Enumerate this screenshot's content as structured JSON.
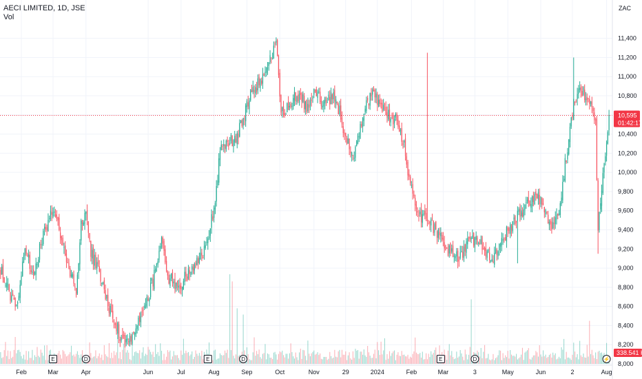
{
  "header": {
    "symbol_line": "AECI LIMITED, 1D, JSE",
    "volume_label": "Vol"
  },
  "currency": "ZAC",
  "last_price": {
    "value": "10,595",
    "countdown": "01:42:17",
    "color": "#f23645"
  },
  "volume_badge": {
    "value": "338.541 K",
    "color": "#f23645"
  },
  "colors": {
    "up": "#22ab94",
    "down": "#f7525f",
    "grid": "#f0f3fa",
    "price_line": "#f23645"
  },
  "event_markers": [
    {
      "type": "earnings",
      "label": "E",
      "index": 43
    },
    {
      "type": "dividend",
      "label": "D",
      "index": 70
    },
    {
      "type": "earnings",
      "label": "E",
      "index": 170
    },
    {
      "type": "dividend",
      "label": "D",
      "index": 199
    },
    {
      "type": "earnings",
      "label": "E",
      "index": 361
    },
    {
      "type": "dividend",
      "label": "D",
      "index": 389
    },
    {
      "type": "lightning",
      "label": "⚡",
      "index": 497
    }
  ],
  "chart_data": {
    "type": "candlestick",
    "title": "AECI LIMITED, 1D, JSE",
    "unit": "ZAC",
    "ylim": [
      8000,
      11700
    ],
    "y_ticks": [
      8000,
      8200,
      8400,
      8600,
      8800,
      9000,
      9200,
      9400,
      9600,
      9800,
      10000,
      10200,
      10400,
      10600,
      10800,
      11000,
      11200,
      11400
    ],
    "y_tick_labels": [
      "8,000",
      "8,200",
      "8,400",
      "8,600",
      "8,800",
      "9,000",
      "9,200",
      "9,400",
      "9,600",
      "9,800",
      "10,000",
      "10,200",
      "10,400",
      "10,600",
      "10,800",
      "11,000",
      "11,200",
      "11,400"
    ],
    "x_labels": [
      {
        "label": "Feb",
        "index": 17
      },
      {
        "label": "Mar",
        "index": 43
      },
      {
        "label": "Apr",
        "index": 70
      },
      {
        "label": "Jun",
        "index": 121
      },
      {
        "label": "Jul",
        "index": 148
      },
      {
        "label": "Aug",
        "index": 175
      },
      {
        "label": "Sep",
        "index": 202
      },
      {
        "label": "Oct",
        "index": 229
      },
      {
        "label": "Nov",
        "index": 257
      },
      {
        "label": "29",
        "index": 283
      },
      {
        "label": "2024",
        "index": 309
      },
      {
        "label": "Feb",
        "index": 337
      },
      {
        "label": "Mar",
        "index": 363
      },
      {
        "label": "3",
        "index": 389
      },
      {
        "label": "May",
        "index": 416
      },
      {
        "label": "Jun",
        "index": 443
      },
      {
        "label": "2",
        "index": 469
      },
      {
        "label": "Aug",
        "index": 497
      }
    ],
    "num_bars": 500,
    "last_close": 10595,
    "close_keyframes": [
      [
        0,
        9000
      ],
      [
        8,
        8700
      ],
      [
        14,
        8650
      ],
      [
        20,
        9250
      ],
      [
        26,
        8900
      ],
      [
        34,
        9300
      ],
      [
        40,
        9550
      ],
      [
        44,
        9650
      ],
      [
        50,
        9250
      ],
      [
        56,
        9000
      ],
      [
        62,
        8750
      ],
      [
        66,
        9450
      ],
      [
        70,
        9600
      ],
      [
        74,
        9150
      ],
      [
        80,
        9000
      ],
      [
        86,
        8700
      ],
      [
        92,
        8500
      ],
      [
        98,
        8300
      ],
      [
        106,
        8250
      ],
      [
        114,
        8450
      ],
      [
        122,
        8750
      ],
      [
        128,
        9000
      ],
      [
        132,
        9250
      ],
      [
        138,
        8900
      ],
      [
        146,
        8800
      ],
      [
        154,
        8950
      ],
      [
        162,
        9050
      ],
      [
        168,
        9200
      ],
      [
        172,
        9450
      ],
      [
        176,
        9700
      ],
      [
        180,
        10250
      ],
      [
        186,
        10300
      ],
      [
        192,
        10350
      ],
      [
        198,
        10500
      ],
      [
        204,
        10800
      ],
      [
        210,
        10900
      ],
      [
        216,
        11000
      ],
      [
        222,
        11200
      ],
      [
        226,
        11350
      ],
      [
        230,
        10600
      ],
      [
        236,
        10700
      ],
      [
        242,
        10800
      ],
      [
        248,
        10750
      ],
      [
        252,
        10650
      ],
      [
        258,
        10850
      ],
      [
        264,
        10700
      ],
      [
        272,
        10800
      ],
      [
        278,
        10650
      ],
      [
        282,
        10400
      ],
      [
        286,
        10250
      ],
      [
        290,
        10150
      ],
      [
        294,
        10400
      ],
      [
        300,
        10700
      ],
      [
        306,
        10850
      ],
      [
        312,
        10700
      ],
      [
        318,
        10600
      ],
      [
        324,
        10550
      ],
      [
        330,
        10350
      ],
      [
        334,
        10000
      ],
      [
        340,
        9700
      ],
      [
        346,
        9500
      ],
      [
        352,
        9500
      ],
      [
        358,
        9350
      ],
      [
        364,
        9250
      ],
      [
        370,
        9150
      ],
      [
        376,
        9100
      ],
      [
        382,
        9250
      ],
      [
        388,
        9300
      ],
      [
        394,
        9250
      ],
      [
        400,
        9150
      ],
      [
        404,
        9100
      ],
      [
        410,
        9250
      ],
      [
        416,
        9400
      ],
      [
        422,
        9500
      ],
      [
        428,
        9600
      ],
      [
        434,
        9700
      ],
      [
        440,
        9750
      ],
      [
        446,
        9600
      ],
      [
        452,
        9450
      ],
      [
        458,
        9600
      ],
      [
        462,
        10000
      ],
      [
        466,
        10350
      ],
      [
        470,
        10700
      ],
      [
        474,
        10900
      ],
      [
        478,
        10850
      ],
      [
        484,
        10700
      ],
      [
        488,
        10500
      ],
      [
        490,
        9400
      ],
      [
        492,
        9700
      ],
      [
        496,
        10200
      ],
      [
        499,
        10595
      ]
    ],
    "spikes": [
      {
        "index": 490,
        "low": 9150
      },
      {
        "index": 424,
        "low": 9050
      },
      {
        "index": 350,
        "high": 11250
      },
      {
        "index": 470,
        "high": 11200
      }
    ],
    "volume": {
      "type": "bar",
      "unit": "shares",
      "last_value": "338.541 K",
      "peaks": [
        {
          "index": 188,
          "value": 1.0
        },
        {
          "index": 190,
          "value": 0.92
        },
        {
          "index": 194,
          "value": 0.62
        },
        {
          "index": 199,
          "value": 0.55
        },
        {
          "index": 386,
          "value": 0.72
        },
        {
          "index": 483,
          "value": 0.48
        },
        {
          "index": 12,
          "value": 0.3
        },
        {
          "index": 150,
          "value": 0.28
        }
      ]
    }
  }
}
